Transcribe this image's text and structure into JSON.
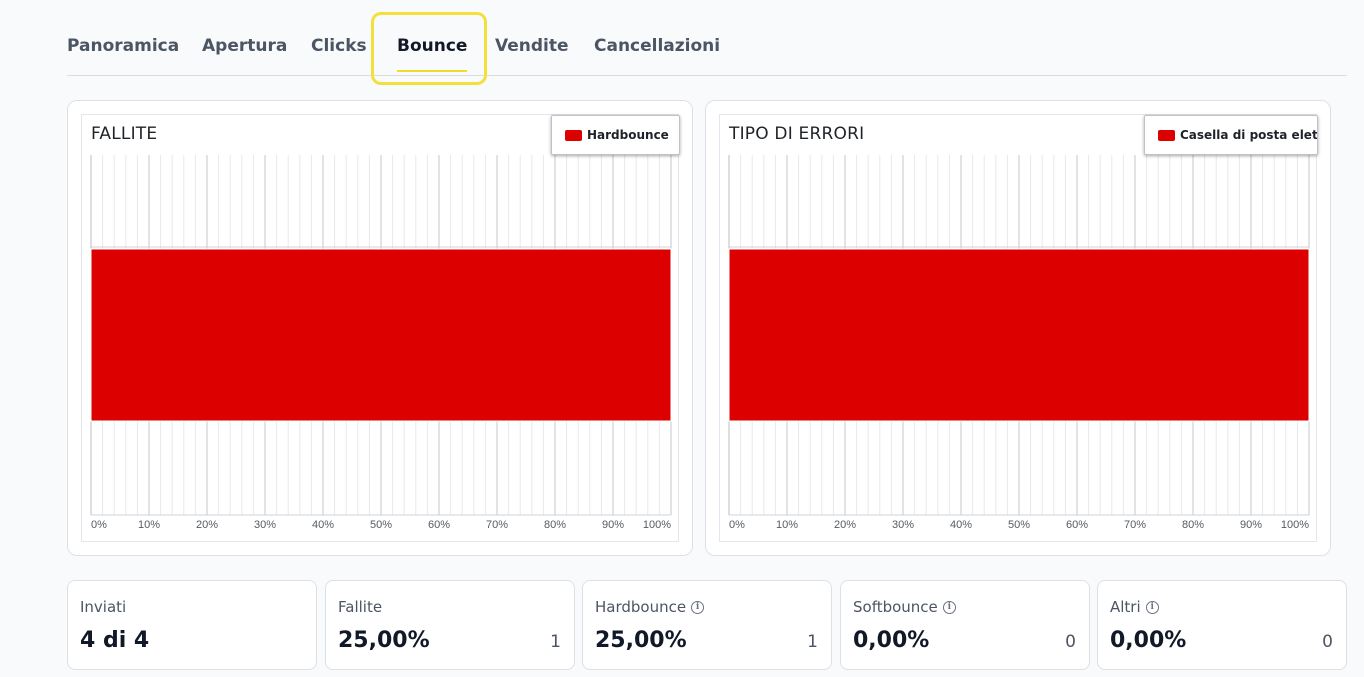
{
  "tabs": [
    {
      "label": "Panoramica",
      "active": false
    },
    {
      "label": "Apertura",
      "active": false
    },
    {
      "label": "Clicks",
      "active": false
    },
    {
      "label": "Bounce",
      "active": true
    },
    {
      "label": "Vendite",
      "active": false
    },
    {
      "label": "Cancellazioni",
      "active": false
    }
  ],
  "colors": {
    "bar": "#dc0000",
    "accent": "#f2dc2a",
    "highlight": "#f4e03a"
  },
  "chart_data": [
    {
      "type": "bar",
      "orientation": "horizontal",
      "stacked": true,
      "title": "FALLITE",
      "series": [
        {
          "name": "Hardbounce",
          "values": [
            100
          ]
        }
      ],
      "xlim": [
        0,
        100
      ],
      "xticks": [
        "0%",
        "10%",
        "20%",
        "30%",
        "40%",
        "50%",
        "60%",
        "70%",
        "80%",
        "90%",
        "100%"
      ],
      "grid": true,
      "legend": "top-right"
    },
    {
      "type": "bar",
      "orientation": "horizontal",
      "stacked": true,
      "title": "TIPO DI ERRORI",
      "series": [
        {
          "name": "Casella di posta elettr",
          "values": [
            100
          ]
        }
      ],
      "xlim": [
        0,
        100
      ],
      "xticks": [
        "0%",
        "10%",
        "20%",
        "30%",
        "40%",
        "50%",
        "60%",
        "70%",
        "80%",
        "90%",
        "100%"
      ],
      "grid": true,
      "legend": "top-right"
    }
  ],
  "stats": [
    {
      "label": "Inviati",
      "value": "4 di 4",
      "count": "",
      "info": false
    },
    {
      "label": "Fallite",
      "value": "25,00%",
      "count": "1",
      "info": false
    },
    {
      "label": "Hardbounce",
      "value": "25,00%",
      "count": "1",
      "info": true
    },
    {
      "label": "Softbounce",
      "value": "0,00%",
      "count": "0",
      "info": true
    },
    {
      "label": "Altri",
      "value": "0,00%",
      "count": "0",
      "info": true
    }
  ]
}
